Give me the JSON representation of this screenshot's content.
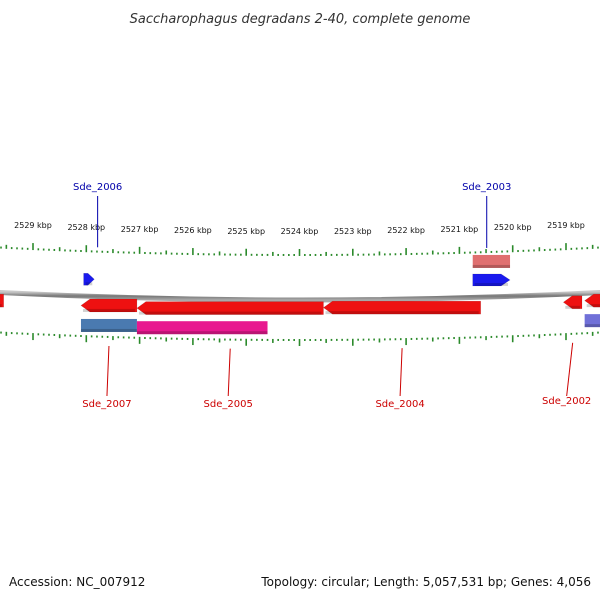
{
  "title": "Saccharophagus degradans 2-40, complete genome",
  "footer": {
    "accession": "Accession: NC_007912",
    "summary": "Topology: circular; Length: 5,057,531 bp; Genes: 4,056"
  },
  "axis": {
    "unit": "kbp",
    "ticks": [
      {
        "kbp": 2529,
        "label": "2529 kbp"
      },
      {
        "kbp": 2528,
        "label": "2528 kbp"
      },
      {
        "kbp": 2527,
        "label": "2527 kbp"
      },
      {
        "kbp": 2526,
        "label": "2526 kbp"
      },
      {
        "kbp": 2525,
        "label": "2525 kbp"
      },
      {
        "kbp": 2524,
        "label": "2524 kbp"
      },
      {
        "kbp": 2523,
        "label": "2523 kbp"
      },
      {
        "kbp": 2522,
        "label": "2522 kbp"
      },
      {
        "kbp": 2521,
        "label": "2521 kbp"
      },
      {
        "kbp": 2520,
        "label": "2520 kbp"
      },
      {
        "kbp": 2519,
        "label": "2519 kbp"
      }
    ]
  },
  "genes": [
    {
      "id": "Sde_2006",
      "start_kbp": 2528.05,
      "end_kbp": 2527.85,
      "strand": "forward",
      "color": "#1a1aee",
      "labeled": true
    },
    {
      "id": "Sde_2003",
      "start_kbp": 2520.75,
      "end_kbp": 2520.05,
      "strand": "forward",
      "color": "#1a1aee",
      "labeled": true
    },
    {
      "id": "Sde_2007",
      "start_kbp": 2528.1,
      "end_kbp": 2527.05,
      "strand": "reverse",
      "color": "#ee1111",
      "labeled": true
    },
    {
      "id": "Sde_2005",
      "start_kbp": 2527.05,
      "end_kbp": 2523.55,
      "strand": "reverse",
      "color": "#ee1111",
      "labeled": true
    },
    {
      "id": "Sde_2004",
      "start_kbp": 2523.55,
      "end_kbp": 2520.6,
      "strand": "reverse",
      "color": "#ee1111",
      "labeled": true
    },
    {
      "id": "Sde_2002",
      "start_kbp": 2519.05,
      "end_kbp": 2518.7,
      "strand": "reverse",
      "color": "#ee1111",
      "labeled": true
    },
    {
      "id": "",
      "start_kbp": 2518.65,
      "end_kbp": 2517.8,
      "strand": "reverse",
      "color": "#ee1111",
      "labeled": false
    },
    {
      "id": "",
      "start_kbp": 2529.95,
      "end_kbp": 2529.55,
      "strand": "reverse",
      "color": "#ee1111",
      "labeled": false
    }
  ],
  "features": [
    {
      "track": "forward-outer",
      "start_kbp": 2520.75,
      "end_kbp": 2520.05,
      "color": "#e07070"
    },
    {
      "track": "reverse-inner",
      "start_kbp": 2528.1,
      "end_kbp": 2527.05,
      "color": "#4a7ab0"
    },
    {
      "track": "reverse-inner",
      "start_kbp": 2527.05,
      "end_kbp": 2524.6,
      "color": "#e8198f"
    },
    {
      "track": "reverse-inner",
      "start_kbp": 2518.65,
      "end_kbp": 2517.8,
      "color": "#7070d8"
    }
  ]
}
